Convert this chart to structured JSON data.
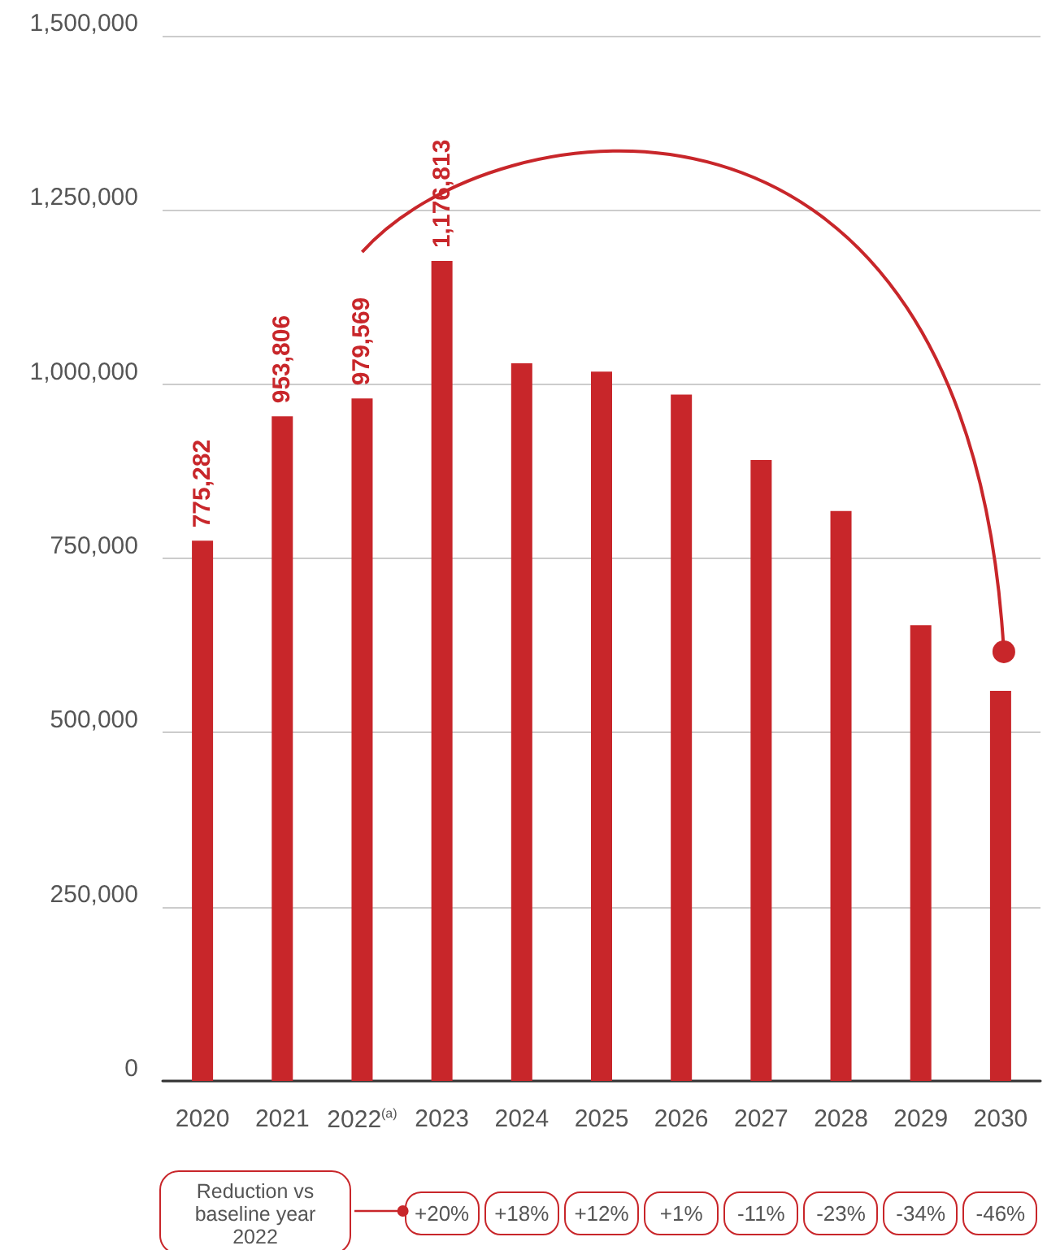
{
  "chart_data": {
    "type": "bar",
    "categories": [
      "2020",
      "2021",
      "2022$^{(a)}$",
      "2023",
      "2024",
      "2025",
      "2026",
      "2027",
      "2028",
      "2029",
      "2030"
    ],
    "values": [
      775282,
      953806,
      979569,
      1176813,
      1030000,
      1018000,
      985000,
      891000,
      818000,
      654000,
      560000
    ],
    "value_labels": [
      "775,282",
      "953,806",
      "979,569",
      "1,176,813",
      null,
      null,
      null,
      null,
      null,
      null,
      null
    ],
    "color": "#c8262a",
    "ylim": [
      0,
      1500000
    ],
    "yticks": [
      {
        "value": 0,
        "label": "0"
      },
      {
        "value": 250000,
        "label": "250,000"
      },
      {
        "value": 500000,
        "label": "500,000"
      },
      {
        "value": 750000,
        "label": "750,000"
      },
      {
        "value": 1000000,
        "label": "1,000,000"
      },
      {
        "value": 1250000,
        "label": "1,250,000"
      },
      {
        "value": 1500000,
        "label": "1,500,000"
      }
    ],
    "grid": "y",
    "annotations": [
      "Reduction vs baseline year 2022",
      "+20%",
      "+18%",
      "+12%",
      "+1%",
      "-11%",
      "-23%",
      "-34%",
      "-46%"
    ]
  }
}
